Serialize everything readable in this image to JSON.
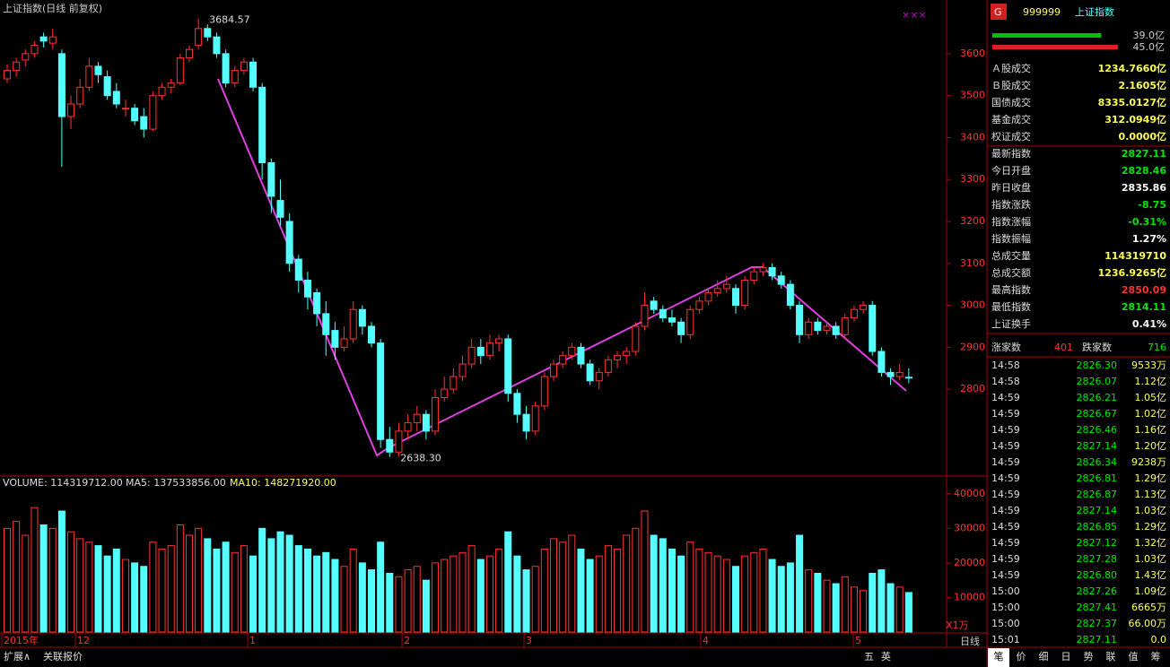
{
  "window": {
    "title": "上证指数(日线 前复权)",
    "bottom_left": [
      "扩展∧",
      "关联报价"
    ],
    "bottom_icons": [
      "五",
      "英"
    ],
    "tabs": [
      "笔",
      "价",
      "细",
      "日",
      "势",
      "联",
      "值",
      "筹"
    ],
    "period": "日线"
  },
  "chart_data": {
    "type": "candlestick",
    "ylim": [
      2595,
      3728
    ],
    "yticks": [
      2800,
      2900,
      3000,
      3100,
      3200,
      3300,
      3400,
      3500,
      3600
    ],
    "up_color": "#ff3232",
    "down_color": "#54ffff",
    "high_label": "3684.57",
    "low_label": "2638.30",
    "date_labels": [
      "2015年",
      "12",
      "1",
      "2",
      "3",
      "4",
      "5"
    ],
    "candles": [
      [
        3540,
        3575,
        3530,
        3560
      ],
      [
        3560,
        3590,
        3545,
        3580
      ],
      [
        3585,
        3610,
        3570,
        3600
      ],
      [
        3600,
        3630,
        3590,
        3620
      ],
      [
        3640,
        3650,
        3615,
        3630
      ],
      [
        3625,
        3660,
        3610,
        3640
      ],
      [
        3600,
        3610,
        3330,
        3450
      ],
      [
        3450,
        3500,
        3420,
        3480
      ],
      [
        3480,
        3540,
        3470,
        3520
      ],
      [
        3520,
        3590,
        3510,
        3570
      ],
      [
        3570,
        3580,
        3530,
        3550
      ],
      [
        3545,
        3560,
        3490,
        3500
      ],
      [
        3510,
        3530,
        3470,
        3480
      ],
      [
        3470,
        3490,
        3450,
        3470
      ],
      [
        3470,
        3480,
        3430,
        3440
      ],
      [
        3450,
        3470,
        3400,
        3420
      ],
      [
        3420,
        3510,
        3415,
        3500
      ],
      [
        3500,
        3530,
        3490,
        3520
      ],
      [
        3520,
        3540,
        3505,
        3530
      ],
      [
        3530,
        3600,
        3525,
        3590
      ],
      [
        3590,
        3620,
        3580,
        3610
      ],
      [
        3620,
        3684.57,
        3610,
        3660
      ],
      [
        3660,
        3670,
        3630,
        3640
      ],
      [
        3640,
        3650,
        3590,
        3600
      ],
      [
        3600,
        3610,
        3520,
        3530
      ],
      [
        3530,
        3570,
        3520,
        3560
      ],
      [
        3560,
        3590,
        3550,
        3580
      ],
      [
        3580,
        3590,
        3510,
        3520
      ],
      [
        3520,
        3530,
        3300,
        3340
      ],
      [
        3340,
        3350,
        3220,
        3260
      ],
      [
        3250,
        3300,
        3190,
        3210
      ],
      [
        3200,
        3220,
        3080,
        3100
      ],
      [
        3110,
        3120,
        3030,
        3060
      ],
      [
        3060,
        3080,
        2990,
        3020
      ],
      [
        3030,
        3040,
        2950,
        2980
      ],
      [
        2980,
        3010,
        2880,
        2930
      ],
      [
        2940,
        2960,
        2870,
        2900
      ],
      [
        2900,
        2950,
        2890,
        2920
      ],
      [
        2920,
        3010,
        2910,
        2990
      ],
      [
        2990,
        3000,
        2930,
        2950
      ],
      [
        2950,
        2960,
        2900,
        2910
      ],
      [
        2910,
        2920,
        2660,
        2680
      ],
      [
        2680,
        2710,
        2638.3,
        2650
      ],
      [
        2650,
        2720,
        2640,
        2700
      ],
      [
        2700,
        2740,
        2680,
        2720
      ],
      [
        2720,
        2760,
        2700,
        2740
      ],
      [
        2740,
        2750,
        2680,
        2700
      ],
      [
        2700,
        2800,
        2690,
        2780
      ],
      [
        2780,
        2830,
        2770,
        2800
      ],
      [
        2800,
        2850,
        2790,
        2830
      ],
      [
        2830,
        2880,
        2820,
        2860
      ],
      [
        2860,
        2920,
        2850,
        2900
      ],
      [
        2900,
        2920,
        2860,
        2880
      ],
      [
        2880,
        2930,
        2870,
        2910
      ],
      [
        2910,
        2930,
        2890,
        2920
      ],
      [
        2920,
        2930,
        2770,
        2790
      ],
      [
        2790,
        2800,
        2720,
        2740
      ],
      [
        2740,
        2760,
        2680,
        2700
      ],
      [
        2700,
        2770,
        2690,
        2760
      ],
      [
        2760,
        2840,
        2750,
        2830
      ],
      [
        2830,
        2870,
        2820,
        2860
      ],
      [
        2860,
        2890,
        2850,
        2880
      ],
      [
        2880,
        2910,
        2870,
        2900
      ],
      [
        2900,
        2910,
        2850,
        2860
      ],
      [
        2860,
        2870,
        2810,
        2820
      ],
      [
        2820,
        2850,
        2800,
        2840
      ],
      [
        2840,
        2880,
        2830,
        2870
      ],
      [
        2870,
        2890,
        2850,
        2880
      ],
      [
        2880,
        2900,
        2860,
        2890
      ],
      [
        2890,
        2960,
        2880,
        2950
      ],
      [
        2950,
        3030,
        2940,
        3000
      ],
      [
        3010,
        3020,
        2980,
        2990
      ],
      [
        2990,
        3000,
        2960,
        2970
      ],
      [
        2970,
        2990,
        2950,
        2960
      ],
      [
        2960,
        2970,
        2910,
        2930
      ],
      [
        2930,
        3000,
        2920,
        2990
      ],
      [
        2990,
        3020,
        2980,
        3010
      ],
      [
        3010,
        3040,
        3000,
        3030
      ],
      [
        3030,
        3060,
        3020,
        3040
      ],
      [
        3040,
        3070,
        3030,
        3050
      ],
      [
        3040,
        3050,
        2980,
        3000
      ],
      [
        3000,
        3070,
        2990,
        3060
      ],
      [
        3060,
        3090,
        3050,
        3080
      ],
      [
        3080,
        3100,
        3070,
        3090
      ],
      [
        3090,
        3100,
        3060,
        3070
      ],
      [
        3070,
        3080,
        3040,
        3050
      ],
      [
        3050,
        3060,
        2990,
        3000
      ],
      [
        3000,
        3010,
        2910,
        2930
      ],
      [
        2930,
        2970,
        2920,
        2960
      ],
      [
        2960,
        2970,
        2930,
        2940
      ],
      [
        2940,
        2960,
        2930,
        2950
      ],
      [
        2950,
        2960,
        2920,
        2930
      ],
      [
        2930,
        2980,
        2920,
        2970
      ],
      [
        2970,
        3000,
        2960,
        2990
      ],
      [
        2990,
        3010,
        2980,
        3000
      ],
      [
        3000,
        3010,
        2880,
        2890
      ],
      [
        2890,
        2900,
        2830,
        2840
      ],
      [
        2840,
        2850,
        2810,
        2830
      ],
      [
        2830,
        2860,
        2820,
        2840
      ],
      [
        2828.46,
        2850.09,
        2814.11,
        2827.11
      ]
    ],
    "volume": {
      "header": [
        "VOLUME: 114319712.00",
        "MA5: 137533856.00",
        "MA10: 148271920.00"
      ],
      "unit": "X1万",
      "ylim": [
        0,
        41500
      ],
      "yticks": [
        10000,
        20000,
        30000,
        40000
      ],
      "values": [
        30000,
        32000,
        28000,
        36000,
        31000,
        30000,
        35000,
        29000,
        27000,
        26000,
        25000,
        22000,
        24000,
        21000,
        20000,
        19000,
        26000,
        24000,
        25000,
        31000,
        28000,
        30000,
        27000,
        24000,
        26000,
        23000,
        25000,
        22000,
        30000,
        27000,
        29000,
        28000,
        25000,
        24000,
        22000,
        23000,
        21000,
        19000,
        24000,
        20000,
        18000,
        26000,
        17000,
        16000,
        18000,
        19000,
        15000,
        20000,
        21000,
        22000,
        23000,
        25000,
        21000,
        22000,
        24000,
        29000,
        22000,
        18000,
        19000,
        24000,
        27000,
        26000,
        28000,
        24000,
        21000,
        22000,
        25000,
        24000,
        28000,
        30000,
        35000,
        28000,
        27000,
        24000,
        22000,
        26000,
        24000,
        23000,
        22000,
        21000,
        19000,
        22000,
        23000,
        24000,
        21000,
        19000,
        20000,
        28000,
        18000,
        17000,
        15000,
        14000,
        16000,
        13000,
        12000,
        17000,
        18000,
        14000,
        13000,
        11431.9712
      ]
    }
  },
  "quote": {
    "code": "999999",
    "name": "上证指数",
    "buy": {
      "value": 39.0,
      "label": "39.0亿"
    },
    "sell": {
      "value": 45.0,
      "label": "45.0亿"
    },
    "rows": [
      [
        "Ａ股成交",
        "1234.7660亿",
        "#ffff54"
      ],
      [
        "Ｂ股成交",
        "2.1605亿",
        "#ffff54"
      ],
      [
        "国债成交",
        "8335.0127亿",
        "#ffff54"
      ],
      [
        "基金成交",
        "312.0949亿",
        "#ffff54"
      ],
      [
        "权证成交",
        "0.0000亿",
        "#ffff54"
      ],
      [
        "最新指数",
        "2827.11",
        "#00e600"
      ],
      [
        "今日开盘",
        "2828.46",
        "#00e600"
      ],
      [
        "昨日收盘",
        "2835.86",
        "#ffffff"
      ],
      [
        "指数涨跌",
        "-8.75",
        "#00e600"
      ],
      [
        "指数涨幅",
        "-0.31%",
        "#00e600"
      ],
      [
        "指数振幅",
        "1.27%",
        "#ffffff"
      ],
      [
        "总成交量",
        "114319710",
        "#ffff54"
      ],
      [
        "总成交额",
        "1236.9265亿",
        "#ffff54"
      ],
      [
        "最高指数",
        "2850.09",
        "#ff3232"
      ],
      [
        "最低指数",
        "2814.11",
        "#00e600"
      ],
      [
        "上证换手",
        "0.41%",
        "#ffffff"
      ]
    ],
    "breadth": [
      "涨家数",
      "401",
      "跌家数",
      "716"
    ],
    "ticks": [
      [
        "14:58",
        "2826.30",
        "9533万"
      ],
      [
        "14:58",
        "2826.07",
        "1.12亿"
      ],
      [
        "14:59",
        "2826.21",
        "1.05亿"
      ],
      [
        "14:59",
        "2826.67",
        "1.02亿"
      ],
      [
        "14:59",
        "2826.46",
        "1.16亿"
      ],
      [
        "14:59",
        "2827.14",
        "1.20亿"
      ],
      [
        "14:59",
        "2826.34",
        "9238万"
      ],
      [
        "14:59",
        "2826.81",
        "1.29亿"
      ],
      [
        "14:59",
        "2826.87",
        "1.13亿"
      ],
      [
        "14:59",
        "2827.14",
        "1.03亿"
      ],
      [
        "14:59",
        "2826.85",
        "1.29亿"
      ],
      [
        "14:59",
        "2827.12",
        "1.32亿"
      ],
      [
        "14:59",
        "2827.28",
        "1.03亿"
      ],
      [
        "14:59",
        "2826.80",
        "1.43亿"
      ],
      [
        "15:00",
        "2827.26",
        "1.09亿"
      ],
      [
        "15:00",
        "2827.41",
        "6665万"
      ],
      [
        "15:00",
        "2827.37",
        "66.00万"
      ],
      [
        "15:01",
        "2827.11",
        "0.0"
      ]
    ]
  }
}
